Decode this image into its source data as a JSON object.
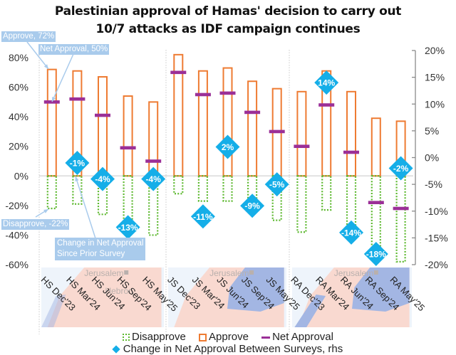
{
  "chart_data": {
    "type": "bar",
    "title": "Palestinian approval of Hamas' decision to carry out 10/7 attacks as IDF campaign continues",
    "title_lines": [
      "Palestinian approval of Hamas' decision to carry out",
      "10/7 attacks as IDF campaign continues"
    ],
    "groups": [
      "HS",
      "JS",
      "RA"
    ],
    "categories": [
      "HS Dec'23",
      "HS Mar'24",
      "HS Jun'24",
      "HS Sep'24",
      "HS May'25",
      "JS Dec'23",
      "JS Mar'24",
      "JS Jun'24",
      "JS Sep'24",
      "JS May'25",
      "RA Dec'23",
      "RA Mar'24",
      "RA Jun'24",
      "RA Sep'24",
      "RA May'25"
    ],
    "series": [
      {
        "name": "Disapprove",
        "axis": "left",
        "style": "dotted-outline",
        "color": "#5cb82e",
        "values": [
          -22,
          -19,
          -26,
          -35,
          -40,
          -12,
          -17,
          -17,
          -21,
          -30,
          -38,
          -23,
          -37,
          -57,
          -58
        ]
      },
      {
        "name": "Approve",
        "axis": "left",
        "style": "outline",
        "color": "#ee7b32",
        "values": [
          72,
          71,
          67,
          54,
          50,
          82,
          71,
          73,
          64,
          59,
          57,
          71,
          57,
          39,
          37
        ]
      },
      {
        "name": "Net Approval",
        "axis": "left",
        "style": "dash-marker",
        "color": "#9b2f97",
        "values": [
          50,
          52,
          41,
          19,
          10,
          70,
          55,
          56,
          43,
          30,
          20,
          48,
          16,
          -18,
          -22
        ]
      },
      {
        "name": "Change in Net Approval Between Surveys, rhs",
        "axis": "right",
        "style": "diamond-marker",
        "color": "#15aee8",
        "values": [
          null,
          -1,
          -4,
          -13,
          -4,
          null,
          -11,
          2,
          -9,
          -5,
          null,
          14,
          -14,
          -18,
          -2
        ],
        "labels": [
          null,
          "-1%",
          "-4%",
          "-13%",
          "-4%",
          null,
          "-11%",
          "2%",
          "-9%",
          "-5%",
          null,
          "14%",
          "-14%",
          "-18%",
          "-2%"
        ]
      }
    ],
    "left_axis": {
      "ylim": [
        -60,
        80
      ],
      "ticks": [
        80,
        60,
        40,
        20,
        0,
        -20,
        -40,
        -60
      ],
      "tick_labels": [
        "80%",
        "60%",
        "40%",
        "20%",
        "0%",
        "-20%",
        "-40%",
        "-60%"
      ]
    },
    "right_axis": {
      "ylim": [
        -20,
        20
      ],
      "ticks": [
        20,
        15,
        10,
        5,
        0,
        -5,
        -10,
        -15,
        -20
      ],
      "tick_labels": [
        "20%",
        "15%",
        "10%",
        "5%",
        "0%",
        "-5%",
        "-10%",
        "-15%",
        "-20%"
      ]
    },
    "grid": false,
    "legend_position": "bottom",
    "legend": [
      "Disapprove",
      "Approve",
      "Net Approval",
      "Change in Net Approval Between Surveys, rhs"
    ]
  },
  "annotations": {
    "approve": "Approve, 72%",
    "net": "Net Approval,  50%",
    "disapprove": "Disapprove, -22%",
    "change_line1": "Change in Net Approval",
    "change_line2": "Since Prior Survey"
  },
  "map_labels": {
    "city1": "Jerusalem",
    "city2": "Hebron"
  },
  "colors": {
    "approve": "#ee7b32",
    "disapprove": "#5cb82e",
    "net": "#9b2f97",
    "change": "#15aee8",
    "callout": "#a9cbec",
    "map_land": "#f9d9d0",
    "map_blue": "#a3b6e3",
    "map_bg": "#eef4fb"
  }
}
